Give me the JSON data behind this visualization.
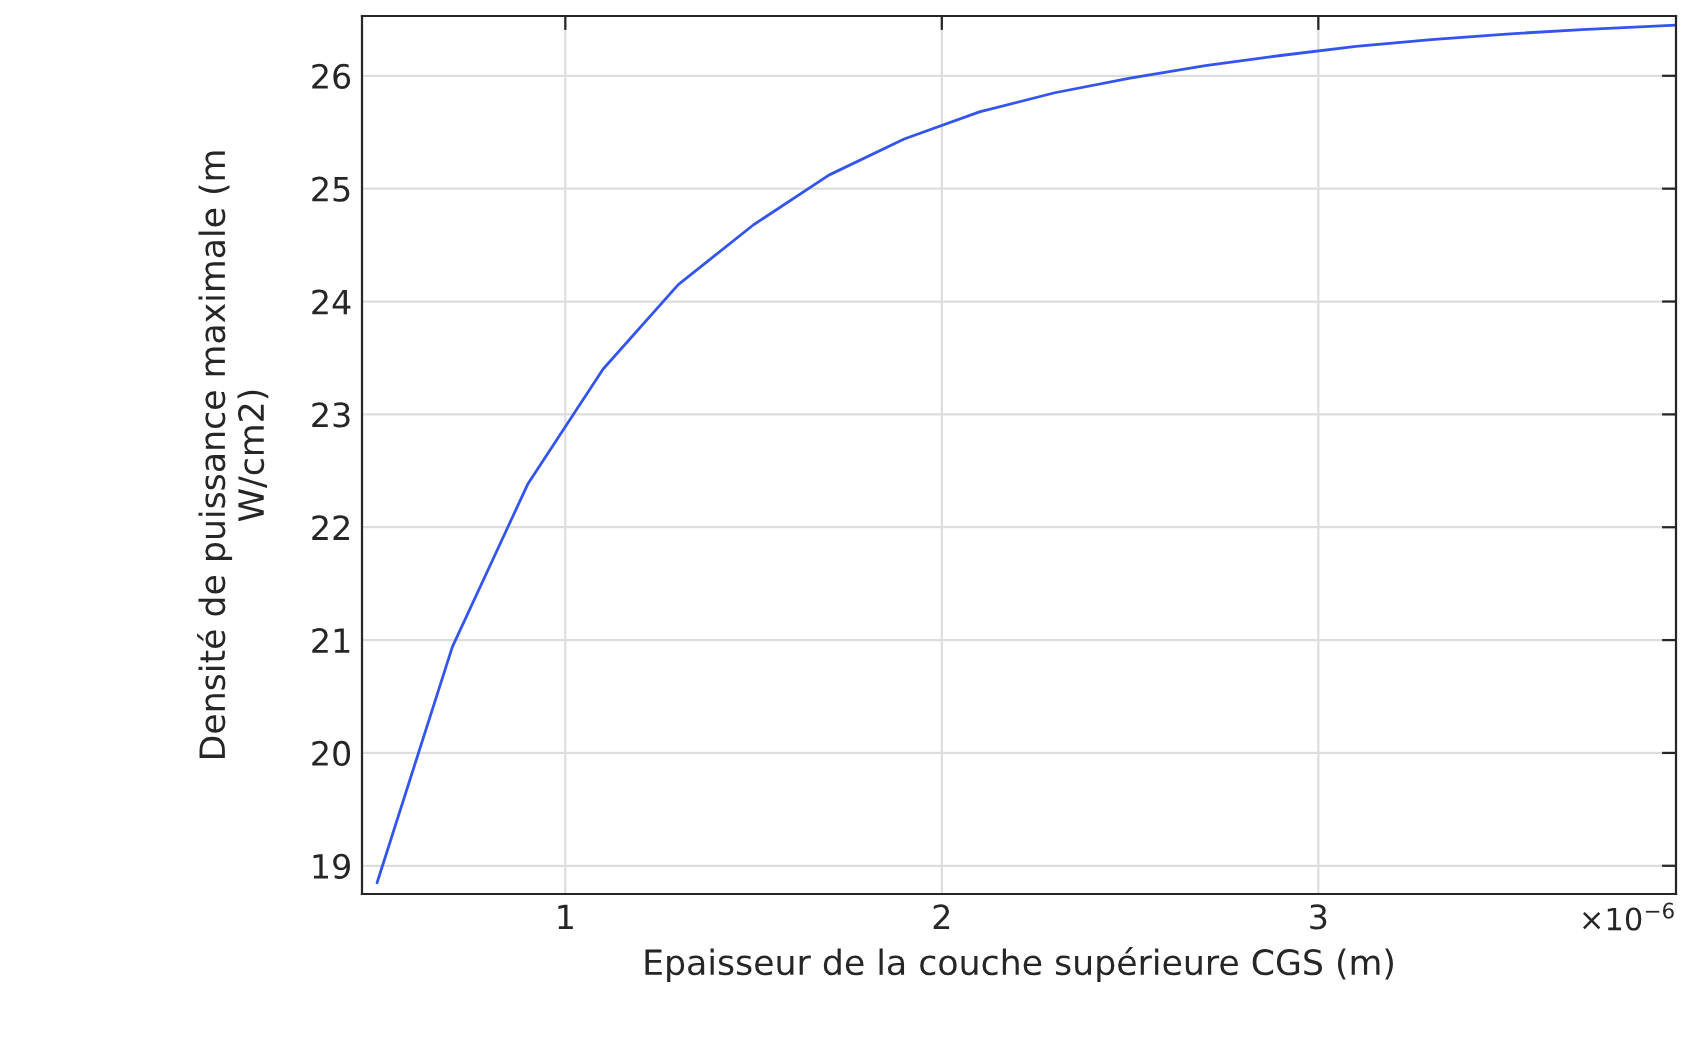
{
  "chart_data": {
    "type": "line",
    "xlabel": "Epaisseur de la couche supérieure CGS (m)",
    "ylabel": "Densité de puissance maximale (m\nW/cm2)",
    "annotations": [
      "×10$^{−6}$"
    ],
    "series": [
      {
        "color": "#3355ee",
        "x": [
          0.5,
          0.7,
          0.9,
          1.1,
          1.3,
          1.5,
          1.7,
          1.9,
          2.1,
          2.3,
          2.5,
          2.7,
          2.9,
          3.1,
          3.3,
          3.5,
          3.7,
          3.95
        ],
        "values": [
          18.85,
          20.94,
          22.38,
          23.4,
          24.15,
          24.68,
          25.12,
          25.44,
          25.68,
          25.85,
          25.98,
          26.09,
          26.18,
          26.26,
          26.32,
          26.37,
          26.41,
          26.45
        ]
      }
    ],
    "xlim": [
      0.46,
      3.95
    ],
    "xticks": [
      1,
      2,
      3
    ],
    "ylim": [
      18.75,
      26.53
    ],
    "yticks": [
      19,
      20,
      21,
      22,
      23,
      24,
      25,
      26
    ],
    "grid": true,
    "marker": "none",
    "line_style": "solid"
  }
}
